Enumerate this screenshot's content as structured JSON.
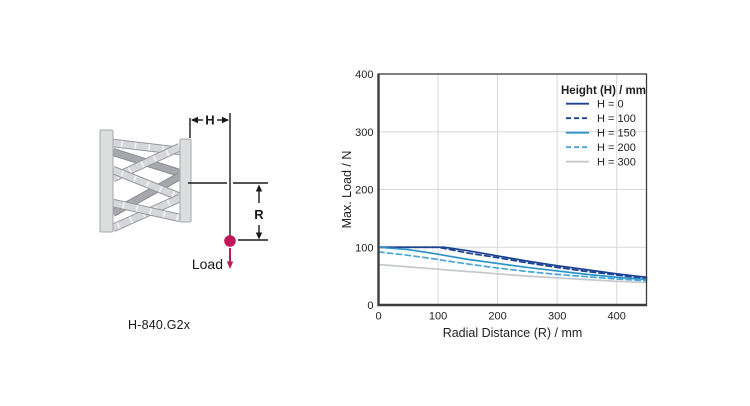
{
  "diagram": {
    "model_label": "H-840.G2x",
    "dim_h_label": "H",
    "dim_r_label": "R",
    "load_label": "Load",
    "accent_color": "#c2175b",
    "plate_color": "#dcdddf",
    "strut_light": "#d6d7da",
    "strut_dark": "#a7a8ad"
  },
  "chart_data": {
    "type": "line",
    "title": "",
    "xlabel": "Radial Distance (R) / mm",
    "ylabel": "Max. Load / N",
    "xlim": [
      0,
      450
    ],
    "ylim": [
      0,
      400
    ],
    "xticks": [
      0,
      100,
      200,
      300,
      400
    ],
    "yticks": [
      0,
      100,
      200,
      300,
      400
    ],
    "grid": true,
    "grid_color": "#d8d8d8",
    "axis_color": "#3c3c3c",
    "legend_title": "Height (H) / mm",
    "legend_position": "top-right",
    "x": [
      0,
      50,
      100,
      110,
      150,
      200,
      250,
      300,
      350,
      400,
      450
    ],
    "series": [
      {
        "name": "H = 0",
        "color": "#1c4295",
        "style": "solid",
        "values": [
          100,
          100,
          100,
          100,
          94,
          85,
          76,
          68,
          61,
          54,
          48
        ]
      },
      {
        "name": "H = 100",
        "color": "#1c4295",
        "style": "dashed",
        "values": [
          100,
          100,
          100,
          98,
          90,
          82,
          73,
          65,
          58,
          52,
          46
        ]
      },
      {
        "name": "H = 150",
        "color": "#2b93c8",
        "style": "solid",
        "values": [
          100,
          96,
          88,
          86,
          79,
          72,
          65,
          59,
          53,
          48,
          44
        ]
      },
      {
        "name": "H = 200",
        "color": "#4aa6d6",
        "style": "dashed",
        "values": [
          92,
          86,
          79,
          77,
          71,
          64,
          58,
          53,
          49,
          45,
          42
        ]
      },
      {
        "name": "H = 300",
        "color": "#c6c9cc",
        "style": "solid",
        "values": [
          70,
          66,
          62,
          61,
          58,
          54,
          50,
          47,
          44,
          41,
          39
        ]
      }
    ]
  }
}
